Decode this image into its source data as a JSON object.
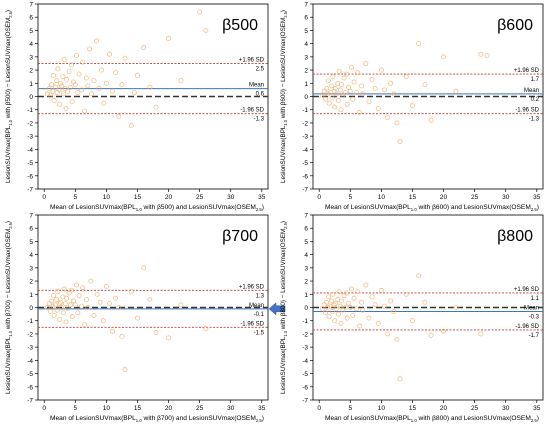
{
  "chart_data": [
    {
      "type": "scatter",
      "panel_label": "β500",
      "xlabel_parts": [
        "Mean of LesionSUVmax(BPL",
        "1.0",
        " with β500) and LesionSUVmax(OSEM",
        "2.5",
        ")"
      ],
      "ylabel_parts": [
        "LesionSUVmax(BPL",
        "1.0",
        " with β500) − LesionSUVmax(OSEM",
        "2.5",
        ")"
      ],
      "xlim": [
        -1,
        36
      ],
      "ylim": [
        -7,
        7
      ],
      "x_ticks": [
        0,
        5,
        10,
        15,
        20,
        25,
        30,
        35
      ],
      "y_ticks": [
        -7,
        -6,
        -5,
        -4,
        -3,
        -2,
        -1,
        0,
        1,
        2,
        3,
        4,
        5,
        6,
        7
      ],
      "mean": {
        "label": "Mean",
        "value": "0.6",
        "y": 0.6
      },
      "upper_loa": {
        "label": "+1.96 SD",
        "value": "2.5",
        "y": 2.5
      },
      "lower_loa": {
        "label": "-1.96 SD",
        "value": "-1.3",
        "y": -1.3
      },
      "points": [
        [
          0.5,
          0.2
        ],
        [
          0.8,
          0.6
        ],
        [
          1.0,
          0.1
        ],
        [
          1.2,
          0.9
        ],
        [
          1.4,
          0.4
        ],
        [
          1.5,
          1.6
        ],
        [
          1.6,
          -0.3
        ],
        [
          1.8,
          0.7
        ],
        [
          2.0,
          1.2
        ],
        [
          2.1,
          0.3
        ],
        [
          2.2,
          2.1
        ],
        [
          2.4,
          0.5
        ],
        [
          2.5,
          -0.6
        ],
        [
          2.6,
          1.0
        ],
        [
          2.8,
          0.8
        ],
        [
          3.0,
          1.5
        ],
        [
          3.1,
          0.2
        ],
        [
          3.2,
          2.8
        ],
        [
          3.4,
          0.6
        ],
        [
          3.5,
          -0.9
        ],
        [
          3.6,
          1.3
        ],
        [
          3.8,
          0.4
        ],
        [
          4.0,
          1.9
        ],
        [
          4.2,
          0.7
        ],
        [
          4.4,
          2.4
        ],
        [
          4.5,
          -0.4
        ],
        [
          4.7,
          1.1
        ],
        [
          5.0,
          0.9
        ],
        [
          5.2,
          3.1
        ],
        [
          5.4,
          0.3
        ],
        [
          5.6,
          1.7
        ],
        [
          6.0,
          0.5
        ],
        [
          6.2,
          2.6
        ],
        [
          6.5,
          -1.1
        ],
        [
          6.8,
          1.4
        ],
        [
          7.0,
          0.8
        ],
        [
          7.3,
          3.6
        ],
        [
          7.6,
          0.2
        ],
        [
          8.0,
          1.2
        ],
        [
          8.4,
          4.2
        ],
        [
          8.8,
          0.6
        ],
        [
          9.2,
          2.0
        ],
        [
          9.6,
          -0.5
        ],
        [
          10.0,
          1.0
        ],
        [
          10.5,
          3.2
        ],
        [
          11.0,
          0.4
        ],
        [
          11.5,
          1.8
        ],
        [
          12.0,
          -1.5
        ],
        [
          12.5,
          0.9
        ],
        [
          13.0,
          2.9
        ],
        [
          14.0,
          -2.2
        ],
        [
          14.5,
          0.3
        ],
        [
          15.0,
          1.6
        ],
        [
          16.0,
          3.7
        ],
        [
          17.0,
          0.7
        ],
        [
          18.0,
          -0.8
        ],
        [
          20.0,
          4.4
        ],
        [
          22.0,
          1.2
        ],
        [
          25.0,
          6.4
        ],
        [
          26.0,
          5.0
        ]
      ]
    },
    {
      "type": "scatter",
      "panel_label": "β600",
      "xlabel_parts": [
        "Mean of LesionSUVmax(BPL",
        "1.0",
        " with β600) and LesionSUVmax(OSEM",
        "2.5",
        ")"
      ],
      "ylabel_parts": [
        "LesionSUVmax(BPL",
        "1.0",
        " with β600) − LesionSUVmax(OSEM",
        "2.5",
        ")"
      ],
      "xlim": [
        -1,
        36
      ],
      "ylim": [
        -7,
        7
      ],
      "x_ticks": [
        0,
        5,
        10,
        15,
        20,
        25,
        30,
        35
      ],
      "y_ticks": [
        -7,
        -6,
        -5,
        -4,
        -3,
        -2,
        -1,
        0,
        1,
        2,
        3,
        4,
        5,
        6,
        7
      ],
      "mean": {
        "label": "Mean",
        "value": "0.2",
        "y": 0.2
      },
      "upper_loa": {
        "label": "+1.96 SD",
        "value": "1.7",
        "y": 1.7
      },
      "lower_loa": {
        "label": "-1.96 SD",
        "value": "-1.3",
        "y": -1.3
      },
      "points": [
        [
          0.5,
          0.1
        ],
        [
          0.8,
          0.4
        ],
        [
          1.0,
          -0.2
        ],
        [
          1.2,
          0.6
        ],
        [
          1.4,
          0.2
        ],
        [
          1.5,
          1.2
        ],
        [
          1.6,
          -0.5
        ],
        [
          1.8,
          0.3
        ],
        [
          2.0,
          0.8
        ],
        [
          2.1,
          -0.1
        ],
        [
          2.2,
          1.5
        ],
        [
          2.4,
          0.4
        ],
        [
          2.5,
          -0.8
        ],
        [
          2.6,
          0.6
        ],
        [
          2.8,
          0.2
        ],
        [
          3.0,
          1.0
        ],
        [
          3.1,
          -0.3
        ],
        [
          3.2,
          1.9
        ],
        [
          3.4,
          0.5
        ],
        [
          3.5,
          -1.0
        ],
        [
          3.6,
          0.9
        ],
        [
          3.8,
          0.1
        ],
        [
          4.0,
          1.4
        ],
        [
          4.2,
          0.3
        ],
        [
          4.4,
          1.7
        ],
        [
          4.5,
          -0.6
        ],
        [
          4.7,
          0.7
        ],
        [
          5.0,
          0.4
        ],
        [
          5.2,
          2.2
        ],
        [
          5.4,
          -0.2
        ],
        [
          5.6,
          1.1
        ],
        [
          6.0,
          0.3
        ],
        [
          6.2,
          1.8
        ],
        [
          6.5,
          -1.2
        ],
        [
          6.8,
          0.8
        ],
        [
          7.0,
          0.2
        ],
        [
          7.5,
          2.5
        ],
        [
          8.0,
          -0.4
        ],
        [
          8.5,
          1.3
        ],
        [
          9.0,
          0.6
        ],
        [
          9.5,
          -0.9
        ],
        [
          10.0,
          2.0
        ],
        [
          10.5,
          0.5
        ],
        [
          11.0,
          -1.6
        ],
        [
          11.5,
          1.0
        ],
        [
          12.0,
          0.2
        ],
        [
          12.5,
          -2.0
        ],
        [
          13.0,
          -3.4
        ],
        [
          14.0,
          1.5
        ],
        [
          15.0,
          -0.7
        ],
        [
          16.0,
          4.0
        ],
        [
          17.0,
          0.9
        ],
        [
          18.0,
          -1.8
        ],
        [
          20.0,
          3.0
        ],
        [
          22.0,
          0.4
        ],
        [
          26.0,
          3.2
        ],
        [
          27.0,
          3.1
        ]
      ]
    },
    {
      "type": "scatter",
      "panel_label": "β700",
      "xlabel_parts": [
        "Mean of LesionSUVmax(BPL",
        "1.0",
        " with β700) and LesionSUVmax(OSEM",
        "2.5",
        ")"
      ],
      "ylabel_parts": [
        "LesionSUVmax(BPL",
        "1.0",
        " with β700) − LesionSUVmax(OSEM",
        "2.5",
        ")"
      ],
      "xlim": [
        -1,
        36
      ],
      "ylim": [
        -7,
        7
      ],
      "x_ticks": [
        0,
        5,
        10,
        15,
        20,
        25,
        30,
        35
      ],
      "y_ticks": [
        -7,
        -6,
        -5,
        -4,
        -3,
        -2,
        -1,
        0,
        1,
        2,
        3,
        4,
        5,
        6,
        7
      ],
      "mean": {
        "label": "Mean",
        "value": "-0.1",
        "y": -0.1
      },
      "upper_loa": {
        "label": "+1.96 SD",
        "value": "1.3",
        "y": 1.3
      },
      "lower_loa": {
        "label": "-1.96 SD",
        "value": "-1.5",
        "y": -1.5
      },
      "highlight_arrow": true,
      "points": [
        [
          0.5,
          0.0
        ],
        [
          0.8,
          0.3
        ],
        [
          1.0,
          -0.3
        ],
        [
          1.2,
          0.5
        ],
        [
          1.4,
          0.1
        ],
        [
          1.5,
          0.9
        ],
        [
          1.6,
          -0.6
        ],
        [
          1.8,
          0.2
        ],
        [
          2.0,
          0.6
        ],
        [
          2.1,
          -0.2
        ],
        [
          2.2,
          1.2
        ],
        [
          2.4,
          0.3
        ],
        [
          2.5,
          -0.9
        ],
        [
          2.6,
          0.4
        ],
        [
          2.8,
          0.0
        ],
        [
          3.0,
          0.8
        ],
        [
          3.1,
          -0.4
        ],
        [
          3.2,
          1.4
        ],
        [
          3.4,
          0.3
        ],
        [
          3.5,
          -1.1
        ],
        [
          3.6,
          0.7
        ],
        [
          3.8,
          -0.1
        ],
        [
          4.0,
          1.1
        ],
        [
          4.2,
          0.2
        ],
        [
          4.4,
          1.3
        ],
        [
          4.5,
          -0.7
        ],
        [
          4.7,
          0.5
        ],
        [
          5.0,
          0.2
        ],
        [
          5.2,
          1.7
        ],
        [
          5.4,
          -0.4
        ],
        [
          5.6,
          0.9
        ],
        [
          6.0,
          0.1
        ],
        [
          6.2,
          1.5
        ],
        [
          6.5,
          -1.3
        ],
        [
          6.8,
          0.6
        ],
        [
          7.0,
          0.0
        ],
        [
          7.5,
          2.0
        ],
        [
          8.0,
          -0.6
        ],
        [
          8.5,
          1.0
        ],
        [
          9.0,
          0.4
        ],
        [
          9.5,
          -1.0
        ],
        [
          10.0,
          1.6
        ],
        [
          10.5,
          0.3
        ],
        [
          11.0,
          -1.8
        ],
        [
          11.5,
          0.7
        ],
        [
          12.0,
          0.0
        ],
        [
          12.5,
          -2.2
        ],
        [
          13.0,
          -4.7
        ],
        [
          14.0,
          1.2
        ],
        [
          15.0,
          -0.8
        ],
        [
          16.0,
          3.0
        ],
        [
          17.0,
          0.6
        ],
        [
          18.0,
          -1.9
        ],
        [
          20.0,
          -2.3
        ],
        [
          22.0,
          0.2
        ],
        [
          26.0,
          -1.6
        ]
      ]
    },
    {
      "type": "scatter",
      "panel_label": "β800",
      "xlabel_parts": [
        "Mean of LesionSUVmax(BPL",
        "1.0",
        " with β800) and LesionSUVmax(OSEM",
        "2.5",
        ")"
      ],
      "ylabel_parts": [
        "LesionSUVmax(BPL",
        "1.0",
        " with β800) − LesionSUVmax(OSEM",
        "2.5",
        ")"
      ],
      "xlim": [
        -1,
        36
      ],
      "ylim": [
        -7,
        7
      ],
      "x_ticks": [
        0,
        5,
        10,
        15,
        20,
        25,
        30,
        35
      ],
      "y_ticks": [
        -7,
        -6,
        -5,
        -4,
        -3,
        -2,
        -1,
        0,
        1,
        2,
        3,
        4,
        5,
        6,
        7
      ],
      "mean": {
        "label": "Mean",
        "value": "-0.3",
        "y": -0.3
      },
      "upper_loa": {
        "label": "+1.96 SD",
        "value": "1.1",
        "y": 1.1
      },
      "lower_loa": {
        "label": "-1.96 SD",
        "value": "-1.7",
        "y": -1.7
      },
      "points": [
        [
          0.5,
          -0.1
        ],
        [
          0.8,
          0.2
        ],
        [
          1.0,
          -0.4
        ],
        [
          1.2,
          0.4
        ],
        [
          1.4,
          0.0
        ],
        [
          1.5,
          0.8
        ],
        [
          1.6,
          -0.7
        ],
        [
          1.8,
          0.1
        ],
        [
          2.0,
          0.5
        ],
        [
          2.1,
          -0.3
        ],
        [
          2.2,
          1.0
        ],
        [
          2.4,
          0.2
        ],
        [
          2.5,
          -1.0
        ],
        [
          2.6,
          0.3
        ],
        [
          2.8,
          -0.1
        ],
        [
          3.0,
          0.6
        ],
        [
          3.1,
          -0.5
        ],
        [
          3.2,
          1.2
        ],
        [
          3.4,
          0.1
        ],
        [
          3.5,
          -1.2
        ],
        [
          3.6,
          0.5
        ],
        [
          3.8,
          -0.2
        ],
        [
          4.0,
          0.9
        ],
        [
          4.2,
          0.0
        ],
        [
          4.4,
          1.1
        ],
        [
          4.5,
          -0.8
        ],
        [
          4.7,
          0.3
        ],
        [
          5.0,
          0.0
        ],
        [
          5.2,
          1.4
        ],
        [
          5.4,
          -0.6
        ],
        [
          5.6,
          0.7
        ],
        [
          6.0,
          -0.1
        ],
        [
          6.2,
          1.2
        ],
        [
          6.5,
          -1.4
        ],
        [
          6.8,
          0.4
        ],
        [
          7.0,
          -0.2
        ],
        [
          7.5,
          1.7
        ],
        [
          8.0,
          -0.8
        ],
        [
          8.5,
          0.8
        ],
        [
          9.0,
          0.2
        ],
        [
          9.5,
          -1.2
        ],
        [
          10.0,
          1.3
        ],
        [
          10.5,
          0.1
        ],
        [
          11.0,
          -2.0
        ],
        [
          11.5,
          0.5
        ],
        [
          12.0,
          -0.3
        ],
        [
          12.5,
          -2.4
        ],
        [
          13.0,
          -5.4
        ],
        [
          14.0,
          1.0
        ],
        [
          15.0,
          -1.0
        ],
        [
          16.0,
          2.4
        ],
        [
          17.0,
          0.4
        ],
        [
          18.0,
          -2.1
        ],
        [
          20.0,
          -1.8
        ],
        [
          22.0,
          0.0
        ],
        [
          26.0,
          -2.0
        ]
      ]
    }
  ],
  "colors": {
    "point": "#f0b070",
    "mean_line": "#3b78b8",
    "loa_line": "#c0392b",
    "zero_line": "#333333",
    "axis": "#000000",
    "arrow": "#4472c4"
  }
}
